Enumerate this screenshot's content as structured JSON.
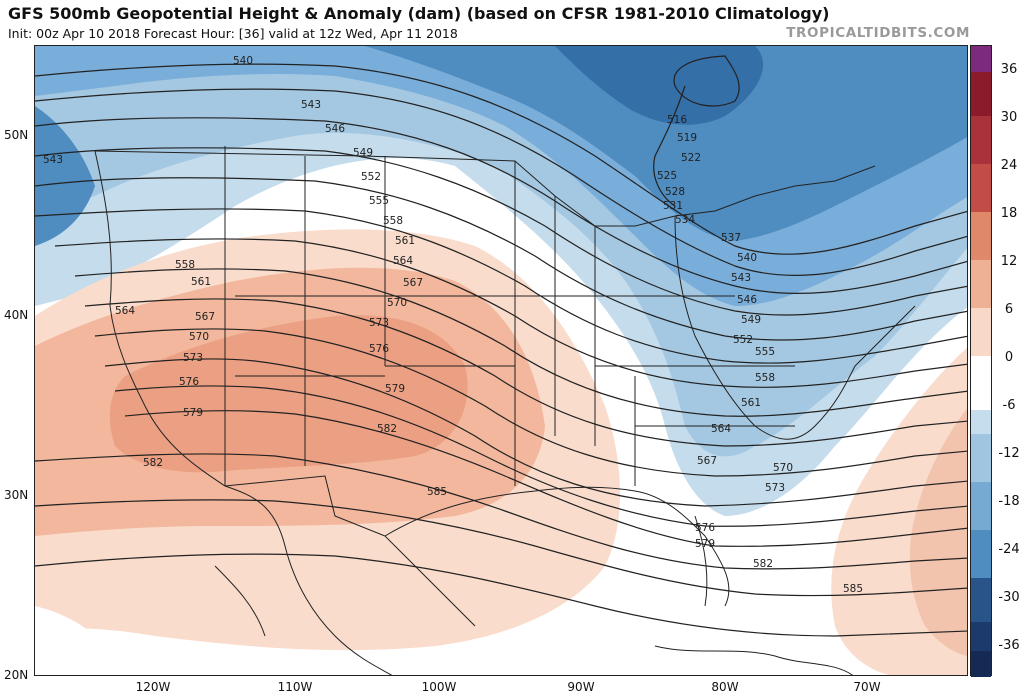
{
  "header": {
    "title": "GFS 500mb Geopotential Height & Anomaly (dam) (based on CFSR 1981-2010 Climatology)",
    "subtitle": "Init: 00z Apr 10 2018   Forecast Hour: [36]   valid at 12z Wed, Apr 11 2018",
    "brand": "TROPICALTIDBITS.COM"
  },
  "map": {
    "lat_labels": [
      "50N",
      "40N",
      "30N",
      "20N"
    ],
    "lon_labels": [
      "120W",
      "110W",
      "100W",
      "90W",
      "80W",
      "70W"
    ],
    "contour_labels": [
      "540",
      "543",
      "546",
      "549",
      "552",
      "555",
      "558",
      "561",
      "564",
      "567",
      "570",
      "573",
      "576",
      "579",
      "582",
      "585",
      "516",
      "519",
      "522",
      "525",
      "528",
      "531",
      "534",
      "537",
      "540",
      "543",
      "546",
      "549",
      "552",
      "555",
      "558",
      "561",
      "564",
      "567",
      "570",
      "573",
      "576",
      "579",
      "582",
      "585",
      "543",
      "558",
      "561",
      "564",
      "567",
      "570",
      "573",
      "576",
      "579",
      "582"
    ]
  },
  "colorbar": {
    "ticks": [
      "36",
      "30",
      "24",
      "18",
      "12",
      "6",
      "0",
      "-6",
      "-12",
      "-18",
      "-24",
      "-30",
      "-36"
    ],
    "colors": [
      "#7b2a7e",
      "#8b1a2a",
      "#b03a3a",
      "#cc5b48",
      "#e0896a",
      "#efb196",
      "#f8d8c7",
      "#ffffff",
      "#ffffff",
      "#c6dded",
      "#9fc5e0",
      "#76aad2",
      "#4f8cc0",
      "#356fa8",
      "#28548a",
      "#1c3a6c",
      "#142a55"
    ]
  }
}
